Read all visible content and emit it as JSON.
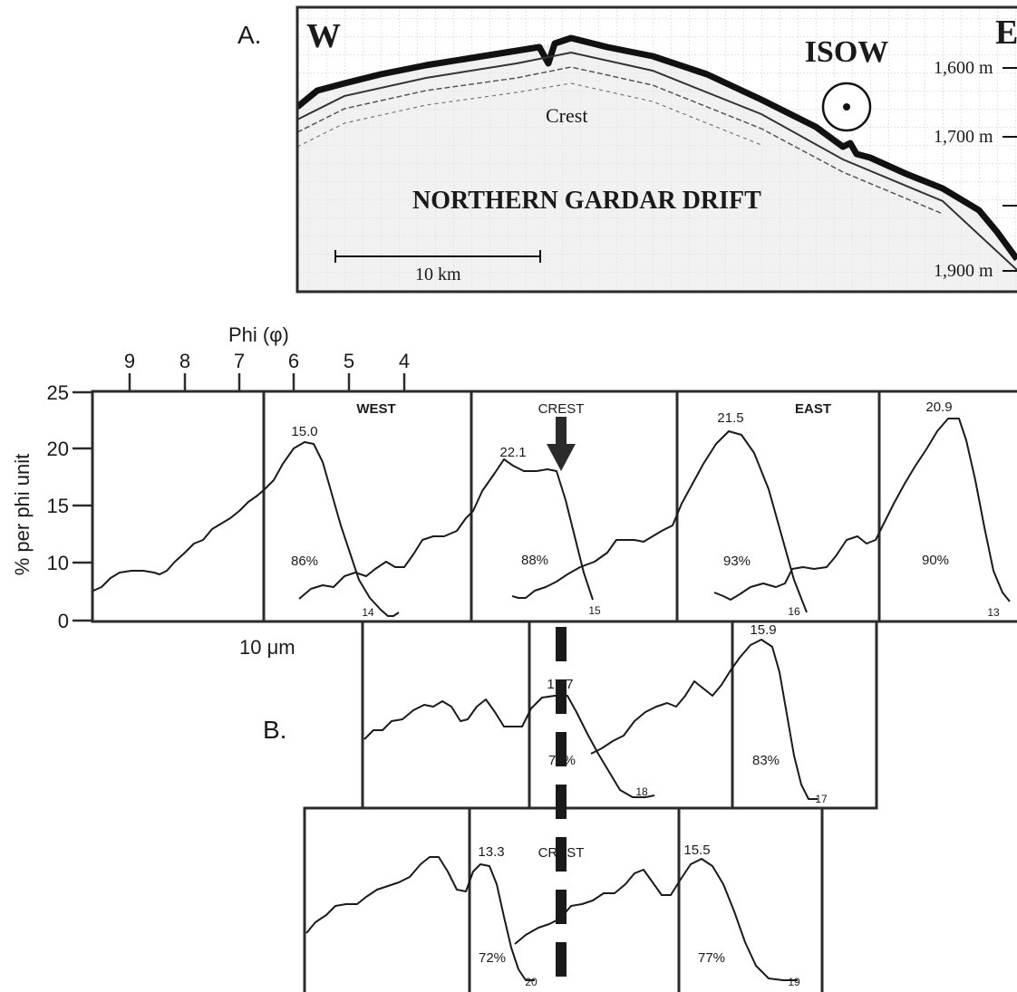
{
  "panel_a": {
    "label": "A.",
    "west": "W",
    "east": "E",
    "water_mass": "ISOW",
    "crest": "Crest",
    "title": "NORTHERN GARDAR DRIFT",
    "scale": "10 km",
    "depths": [
      "1,600 m",
      "1,700 m",
      "1,900 m"
    ]
  },
  "panel_b": {
    "label": "B.",
    "axis_title": "Phi (φ)",
    "phi_ticks": [
      "9",
      "8",
      "7",
      "6",
      "5",
      "4"
    ],
    "y_ticks": [
      "25",
      "20",
      "15",
      "10",
      "5",
      "0"
    ],
    "y_label": "% per phi unit",
    "size_label": "10 μm",
    "west": "WEST",
    "east": "EAST",
    "crest": "CREST",
    "top_row": {
      "peaks": [
        "15.0",
        "22.1",
        "21.5",
        "20.9"
      ],
      "percents": [
        "86%",
        "88%",
        "93%",
        "90%"
      ],
      "samples": [
        "14",
        "15",
        "16",
        "13"
      ]
    },
    "middle_row": {
      "peaks": [
        "17.7",
        "15.9"
      ],
      "percents": [
        "72%",
        "83%"
      ],
      "samples": [
        "18",
        "17"
      ]
    },
    "bottom_row": {
      "peaks": [
        "13.3",
        "15.5"
      ],
      "percents": [
        "72%",
        "77%"
      ],
      "samples": [
        "20",
        "19"
      ]
    }
  }
}
